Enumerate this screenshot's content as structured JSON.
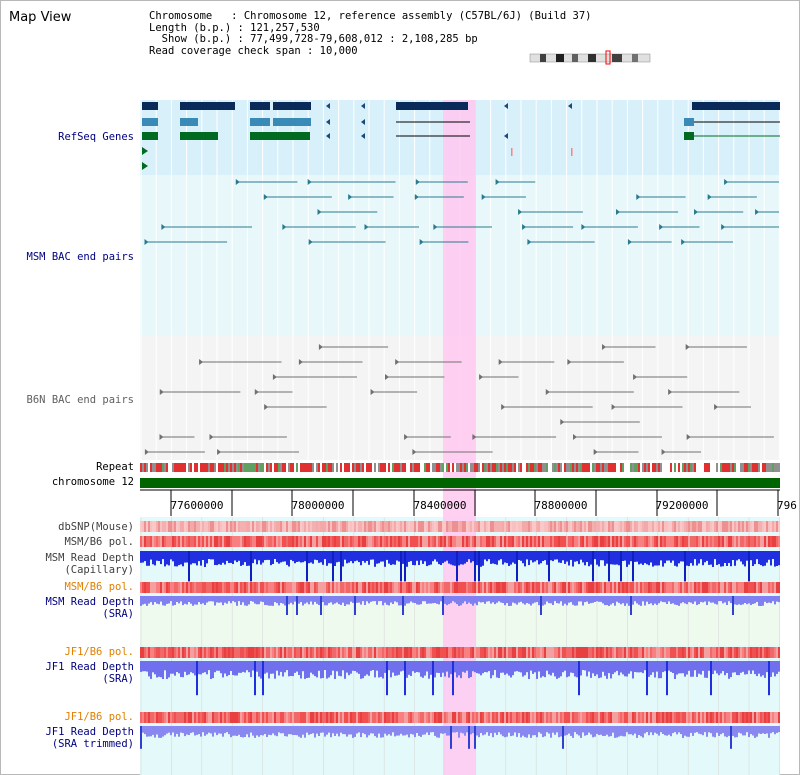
{
  "title": "Map View",
  "info": {
    "line1": "Chromosome   : Chromosome 12, reference assembly (C57BL/6J) (Build 37)",
    "line2": "Length (b.p.) : 121,257,530",
    "line3": "  Show (b.p.) : 77,499,728-79,608,012 : 2,108,285 bp",
    "line4": "Read coverage check span : 10,000"
  },
  "tracks": {
    "refseq": "RefSeq Genes",
    "msm_bac": "MSM BAC end pairs",
    "b6n_bac": "B6N BAC end pairs",
    "repeat": "Repeat",
    "chromosome": "chromosome 12",
    "dbsnp": "dbSNP(Mouse)",
    "msm_b6_pol_1": "MSM/B6 pol.",
    "msm_read_depth_cap_1": "MSM Read Depth",
    "msm_read_depth_cap_2": "(Capillary)",
    "msm_b6_pol_2": "MSM/B6 pol.",
    "msm_read_depth_sra_1": "MSM Read Depth",
    "msm_read_depth_sra_2": "(SRA)",
    "jf1_b6_pol_1": "JF1/B6 pol.",
    "jf1_read_depth_sra_1": "JF1 Read Depth",
    "jf1_read_depth_sra_2": "(SRA)",
    "jf1_b6_pol_2": "JF1/B6 pol.",
    "jf1_read_depth_trim_1": "JF1 Read Depth",
    "jf1_read_depth_trim_2": "(SRA trimmed)"
  },
  "axis": {
    "ticks": [
      "77600000",
      "78000000",
      "78400000",
      "78800000",
      "79200000",
      "796"
    ]
  },
  "colors": {
    "refseq_label": "#000080",
    "msm_label": "#000080",
    "b6n_label": "#606060",
    "pol_orange": "#e08000",
    "depth_label": "#000080",
    "highlight": "#ffc8f0",
    "chromosome_bar": "#006400"
  },
  "icons": [
    "chromosome-ideogram-icon"
  ]
}
